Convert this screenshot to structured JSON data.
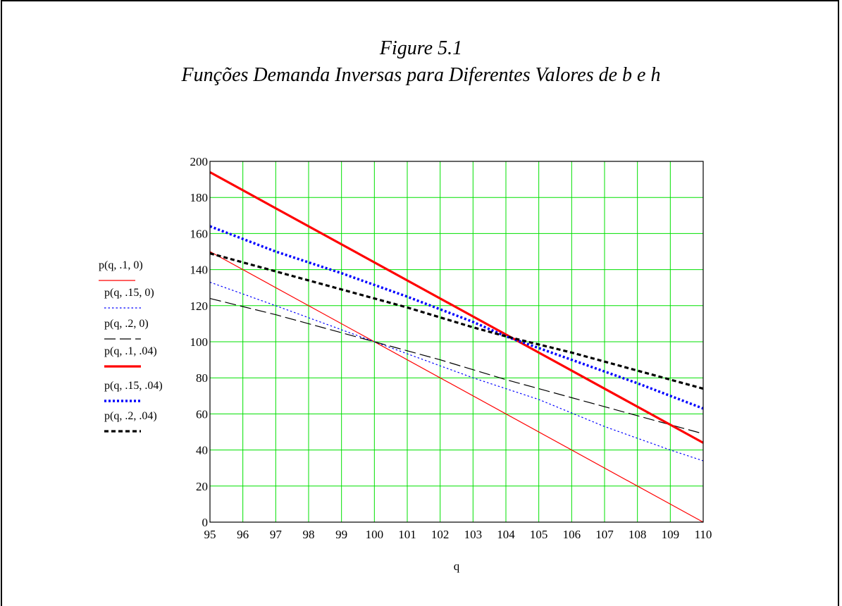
{
  "title_line1": "Figure 5.1",
  "title_line2": "Funções Demanda Inversas para Diferentes Valores de b e h",
  "chart_data": {
    "type": "line",
    "xlabel": "q",
    "ylabel": "",
    "xlim": [
      95,
      110
    ],
    "ylim": [
      0,
      200
    ],
    "x_ticks": [
      95,
      96,
      97,
      98,
      99,
      100,
      101,
      102,
      103,
      104,
      105,
      106,
      107,
      108,
      109,
      110
    ],
    "y_ticks": [
      0,
      20,
      40,
      60,
      80,
      100,
      120,
      140,
      160,
      180,
      200
    ],
    "grid": true,
    "grid_color": "#00e000",
    "legend_position": "left",
    "series": [
      {
        "name": "p(q, .1, 0)",
        "color": "#ff0000",
        "style": "solid-thin",
        "x": [
          95,
          110
        ],
        "y": [
          150,
          0
        ]
      },
      {
        "name": "p(q, .15, 0)",
        "color": "#0000ff",
        "style": "dotted-thin",
        "x": [
          95,
          97,
          100,
          103,
          105,
          107,
          109,
          110
        ],
        "y": [
          133,
          120,
          100,
          80,
          68,
          53,
          40,
          34
        ]
      },
      {
        "name": "p(q, .2, 0)",
        "color": "#000000",
        "style": "dashed-thin",
        "x": [
          95,
          97,
          99,
          100,
          102,
          104,
          106,
          108,
          110
        ],
        "y": [
          124,
          115,
          105,
          100,
          90,
          79,
          69,
          59,
          49
        ]
      },
      {
        "name": "p(q, .1, .04)",
        "color": "#ff0000",
        "style": "solid-thick",
        "x": [
          95,
          110
        ],
        "y": [
          194,
          44
        ]
      },
      {
        "name": "p(q, .15, .04)",
        "color": "#0000ff",
        "style": "dotted-thick",
        "x": [
          95,
          97,
          99,
          101,
          103,
          104,
          106,
          108,
          110
        ],
        "y": [
          164,
          150,
          138,
          125,
          111,
          103,
          90,
          77,
          63
        ]
      },
      {
        "name": "p(q, .2, .04)",
        "color": "#000000",
        "style": "dashed-thick",
        "x": [
          95,
          97,
          99,
          101,
          103,
          104,
          106,
          108,
          110
        ],
        "y": [
          149,
          139,
          129,
          119,
          108,
          103,
          94,
          84,
          74
        ]
      }
    ]
  }
}
